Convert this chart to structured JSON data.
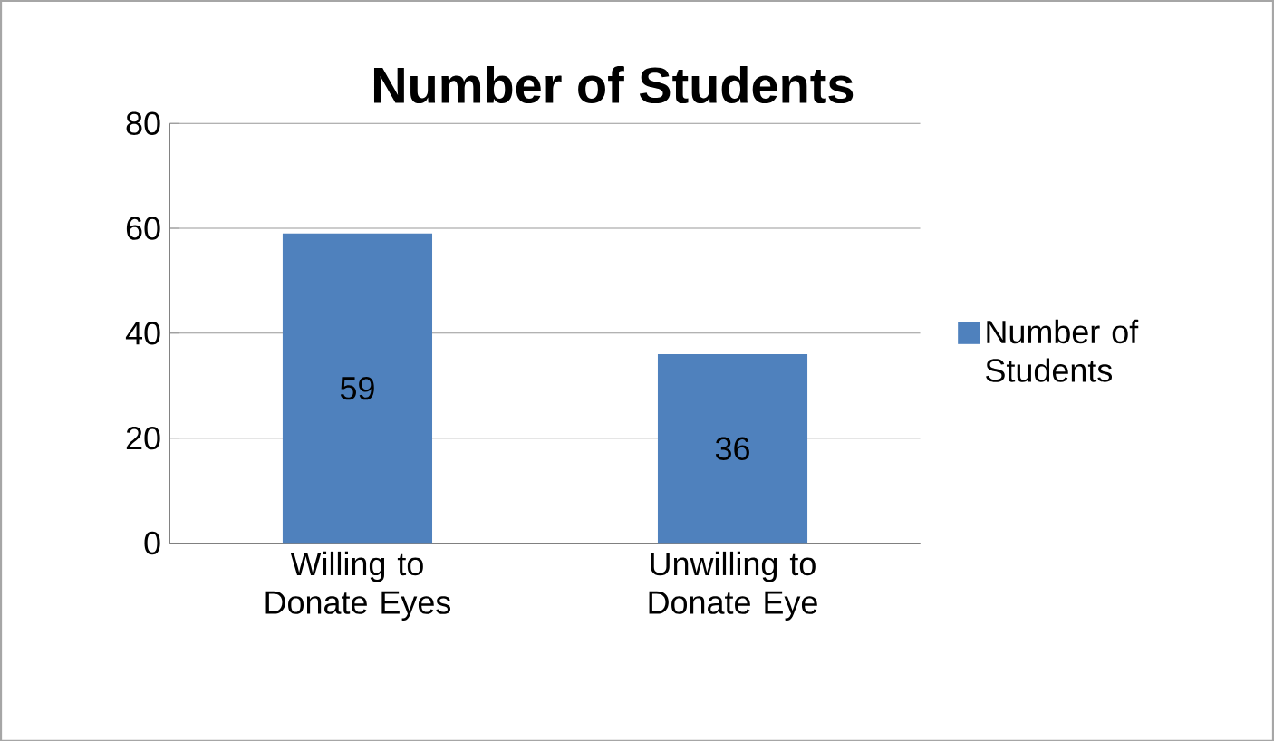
{
  "chart_data": {
    "type": "bar",
    "title": "Number of Students",
    "categories": [
      "Willing to Donate Eyes",
      "Unwilling to Donate Eye"
    ],
    "series": [
      {
        "name": "Number of Students",
        "color": "#4f81bd",
        "values": [
          59,
          36
        ]
      }
    ],
    "ylim": [
      0,
      80
    ],
    "yticks": [
      0,
      20,
      40,
      60,
      80
    ],
    "grid": "y",
    "legend": "right",
    "data_labels": true
  }
}
